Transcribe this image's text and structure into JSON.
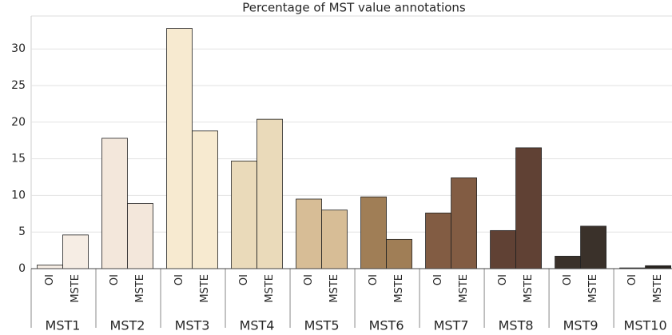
{
  "chart_data": {
    "type": "bar",
    "title": "Percentage of MST value annotations",
    "categories": [
      "MST1",
      "MST2",
      "MST3",
      "MST4",
      "MST5",
      "MST6",
      "MST7",
      "MST8",
      "MST9",
      "MST10"
    ],
    "colors": [
      "#f6ede4",
      "#f3e7db",
      "#f7ead0",
      "#eadaba",
      "#d7bd96",
      "#a07e56",
      "#825c43",
      "#604134",
      "#3a312a",
      "#292420"
    ],
    "series": [
      {
        "name": "OI",
        "values": [
          0.5,
          17.8,
          32.8,
          14.7,
          9.5,
          9.8,
          7.6,
          5.2,
          1.7,
          0.1
        ]
      },
      {
        "name": "MSTE",
        "values": [
          4.6,
          8.9,
          18.8,
          20.4,
          8.0,
          4.0,
          12.4,
          16.5,
          5.8,
          0.4
        ]
      }
    ],
    "ylim": [
      0,
      34.5
    ],
    "yticks": [
      0,
      5,
      10,
      15,
      20,
      25,
      30
    ],
    "grid": true
  }
}
